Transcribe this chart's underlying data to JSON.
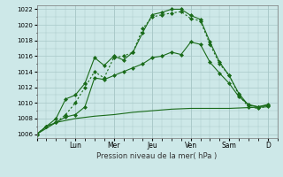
{
  "xlabel": "Pression niveau de la mer( hPa )",
  "background_color": "#cde8e8",
  "grid_color": "#a8c8c8",
  "line_color": "#1a6b1a",
  "ylim": [
    1005.5,
    1022.5
  ],
  "yticks": [
    1006,
    1008,
    1010,
    1012,
    1014,
    1016,
    1018,
    1020,
    1022
  ],
  "day_labels": [
    "",
    "Lun",
    "Mer",
    "Jeu",
    "Ven",
    "Sam",
    "D"
  ],
  "day_positions": [
    0,
    2,
    4,
    6,
    8,
    10,
    12
  ],
  "xlim": [
    0,
    12.5
  ],
  "lines": [
    {
      "x": [
        0,
        0.5,
        1,
        1.5,
        2,
        2.5,
        3,
        3.5,
        4,
        4.5,
        5,
        5.5,
        6,
        6.5,
        7,
        7.5,
        8,
        8.5,
        9,
        9.5,
        10,
        10.5,
        11,
        11.5,
        12
      ],
      "y": [
        1006,
        1007,
        1008,
        1010.5,
        1011,
        1012.5,
        1015.8,
        1014.8,
        1016,
        1015.5,
        1016.5,
        1019,
        1021.3,
        1021.6,
        1022,
        1022,
        1021.2,
        1020.7,
        1017.8,
        1015.2,
        1013.5,
        1011.2,
        1009.7,
        1009.5,
        1009.7
      ],
      "style": "solid",
      "markers": true
    },
    {
      "x": [
        0,
        0.5,
        1,
        1.5,
        2,
        2.5,
        3,
        3.5,
        4,
        4.5,
        5,
        5.5,
        6,
        6.5,
        7,
        7.5,
        8,
        8.5,
        9,
        9.5,
        10,
        10.5,
        11,
        11.5,
        12
      ],
      "y": [
        1006,
        1007,
        1007.5,
        1008.5,
        1010,
        1012,
        1014.0,
        1013.2,
        1015.8,
        1016,
        1016.5,
        1019.5,
        1021,
        1021.3,
        1021.5,
        1021.7,
        1020.8,
        1020.5,
        1017.5,
        1015,
        1013.5,
        1011,
        1009.5,
        1009.3,
        1009.6
      ],
      "style": "dotted",
      "markers": true
    },
    {
      "x": [
        0,
        0.5,
        1,
        1.5,
        2,
        2.5,
        3,
        3.5,
        4,
        4.5,
        5,
        5.5,
        6,
        6.5,
        7,
        7.5,
        8,
        8.5,
        9,
        9.5,
        10,
        10.5,
        11,
        11.5,
        12
      ],
      "y": [
        1006,
        1007,
        1007.5,
        1008.2,
        1008.5,
        1009.5,
        1013.2,
        1013.0,
        1013.5,
        1014.0,
        1014.5,
        1015.0,
        1015.8,
        1016.0,
        1016.5,
        1016.2,
        1017.8,
        1017.5,
        1015.2,
        1013.8,
        1012.5,
        1010.8,
        1009.8,
        1009.5,
        1009.8
      ],
      "style": "solid",
      "markers": true
    },
    {
      "x": [
        0,
        1,
        2,
        3,
        4,
        5,
        6,
        7,
        8,
        9,
        10,
        11,
        12
      ],
      "y": [
        1006,
        1007.5,
        1008.0,
        1008.3,
        1008.5,
        1008.8,
        1009.0,
        1009.2,
        1009.3,
        1009.3,
        1009.3,
        1009.4,
        1009.5
      ],
      "style": "solid",
      "markers": false
    }
  ]
}
